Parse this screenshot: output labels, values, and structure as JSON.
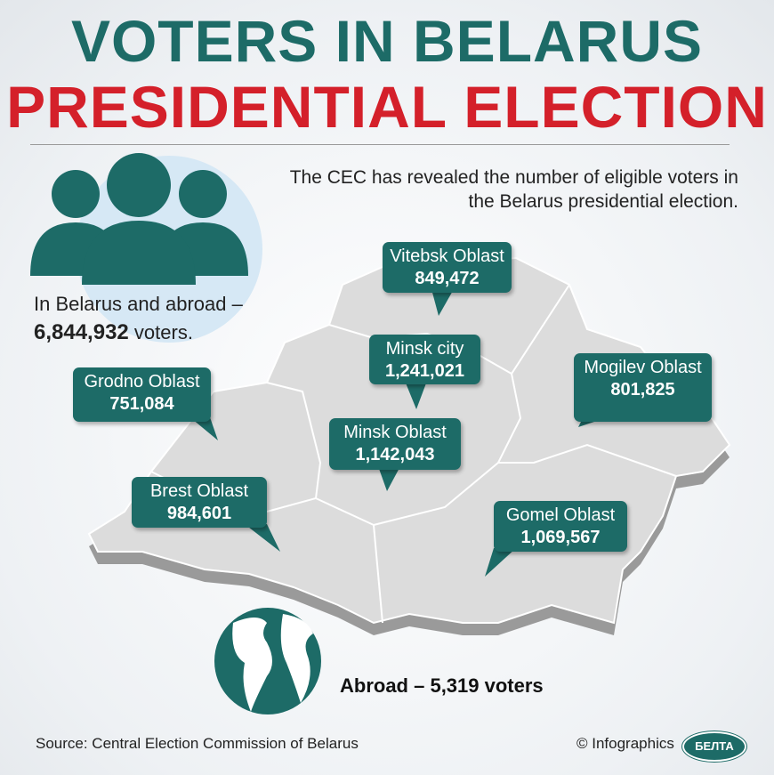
{
  "header": {
    "title_line1": "VOTERS IN BELARUS",
    "title_line2": "PRESIDENTIAL ELECTION",
    "intro_line1": "The CEC has revealed the number of eligible voters in",
    "intro_line2": "the Belarus presidential election."
  },
  "total": {
    "text": "In Belarus and abroad –",
    "value": "6,844,932",
    "unit": "voters."
  },
  "regions": [
    {
      "name": "Vitebsk Oblast",
      "voters": "849,472"
    },
    {
      "name": "Minsk city",
      "voters": "1,241,021"
    },
    {
      "name": "Mogilev Oblast",
      "voters": "801,825"
    },
    {
      "name": "Grodno Oblast",
      "voters": "751,084"
    },
    {
      "name": "Minsk Oblast",
      "voters": "1,142,043"
    },
    {
      "name": "Brest Oblast",
      "voters": "984,601"
    },
    {
      "name": "Gomel Oblast",
      "voters": "1,069,567"
    }
  ],
  "abroad": {
    "text": "Abroad – 5,319 voters"
  },
  "footer": {
    "source": "Source: Central Election Commission of Belarus",
    "credit": "© Infographics",
    "logo": "БЕЛТА"
  }
}
